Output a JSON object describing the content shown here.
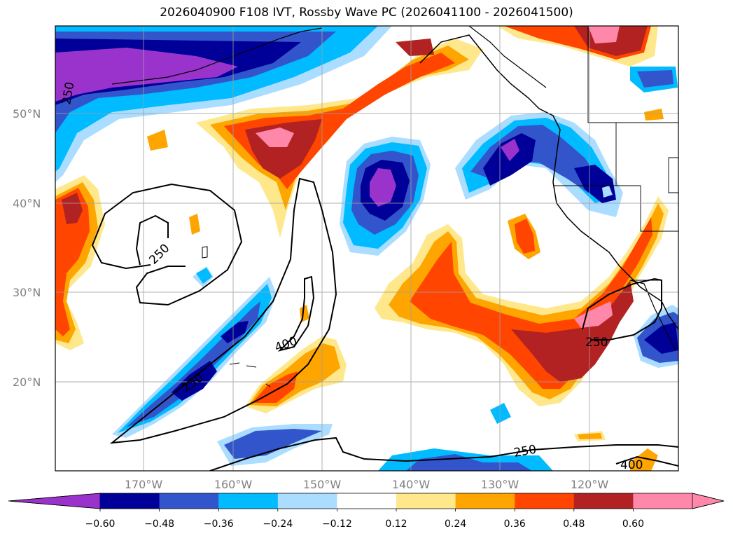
{
  "title": "2026040900 F108 IVT, Rossby Wave PC (2026041100 - 2026041500)",
  "map": {
    "lat_ticks": [
      "50°N",
      "40°N",
      "30°N",
      "20°N"
    ],
    "lon_ticks": [
      "170°W",
      "160°W",
      "150°W",
      "140°W",
      "130°W",
      "120°W"
    ],
    "contour_labels": [
      "250",
      "250",
      "400",
      "250",
      "250",
      "250",
      "400"
    ]
  },
  "colorbar": {
    "levels": [
      "−0.60",
      "−0.48",
      "−0.36",
      "−0.24",
      "−0.12",
      "0.12",
      "0.24",
      "0.36",
      "0.48",
      "0.60"
    ],
    "colors": [
      "#9933cc",
      "#000099",
      "#3355cc",
      "#00bbff",
      "#aaddff",
      "#ffffff",
      "#ffe88c",
      "#ffa500",
      "#ff4500",
      "#b22222",
      "#ff88aa",
      "#ff88aa"
    ]
  },
  "palette": {
    "neg_strong": "#9933cc",
    "neg_2": "#000099",
    "neg_3": "#3355cc",
    "neg_4": "#00bbff",
    "neg_5": "#aaddff",
    "pos_1": "#ffe88c",
    "pos_2": "#ffa500",
    "pos_3": "#ff4500",
    "pos_4": "#b22222",
    "pos_5": "#ff88aa"
  }
}
